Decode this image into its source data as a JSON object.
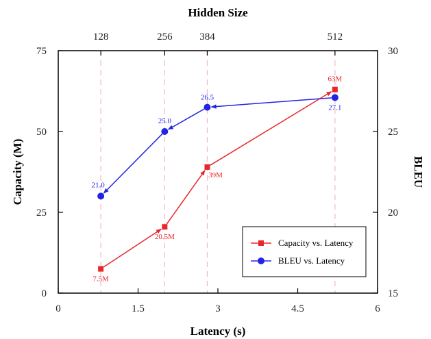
{
  "chart_data": {
    "type": "line",
    "title": "",
    "xlabel": "Latency (s)",
    "x2label": "Hidden Size",
    "ylabel": "Capacity (M)",
    "y2label": "BLEU",
    "xlim": [
      0,
      6
    ],
    "ylim": [
      0,
      75
    ],
    "y2lim": [
      15,
      30
    ],
    "x_ticks": [
      0,
      1.5,
      3,
      4.5,
      6
    ],
    "x_tick_labels": [
      "0",
      "1.5",
      "3",
      "4.5",
      "6"
    ],
    "y_ticks": [
      0,
      25,
      50,
      75
    ],
    "y_tick_labels": [
      "0",
      "25",
      "50",
      "75"
    ],
    "y2_ticks": [
      15,
      20,
      25,
      30
    ],
    "y2_tick_labels": [
      "15",
      "20",
      "25",
      "30"
    ],
    "top_ticks": [
      {
        "x": 0.8,
        "label": "128"
      },
      {
        "x": 2.0,
        "label": "256"
      },
      {
        "x": 2.8,
        "label": "384"
      },
      {
        "x": 5.2,
        "label": "512"
      }
    ],
    "grid": false,
    "legend_position": "bottom-right",
    "series": [
      {
        "name": "Capacity vs. Latency",
        "axis": "left",
        "color": "#e8262b",
        "marker": "square",
        "points": [
          {
            "x": 0.8,
            "y": 7.5,
            "label": "7.5M"
          },
          {
            "x": 2.0,
            "y": 20.5,
            "label": "20.5M"
          },
          {
            "x": 2.8,
            "y": 39,
            "label": "39M"
          },
          {
            "x": 5.2,
            "y": 63,
            "label": "63M"
          }
        ]
      },
      {
        "name": "BLEU vs. Latency",
        "axis": "right",
        "color": "#2323e6",
        "marker": "circle",
        "points": [
          {
            "x": 0.8,
            "y": 21.0,
            "label": "21.0"
          },
          {
            "x": 2.0,
            "y": 25.0,
            "label": "25.0"
          },
          {
            "x": 2.8,
            "y": 26.5,
            "label": "26.5"
          },
          {
            "x": 5.2,
            "y": 27.1,
            "label": "27.1"
          }
        ]
      }
    ]
  }
}
